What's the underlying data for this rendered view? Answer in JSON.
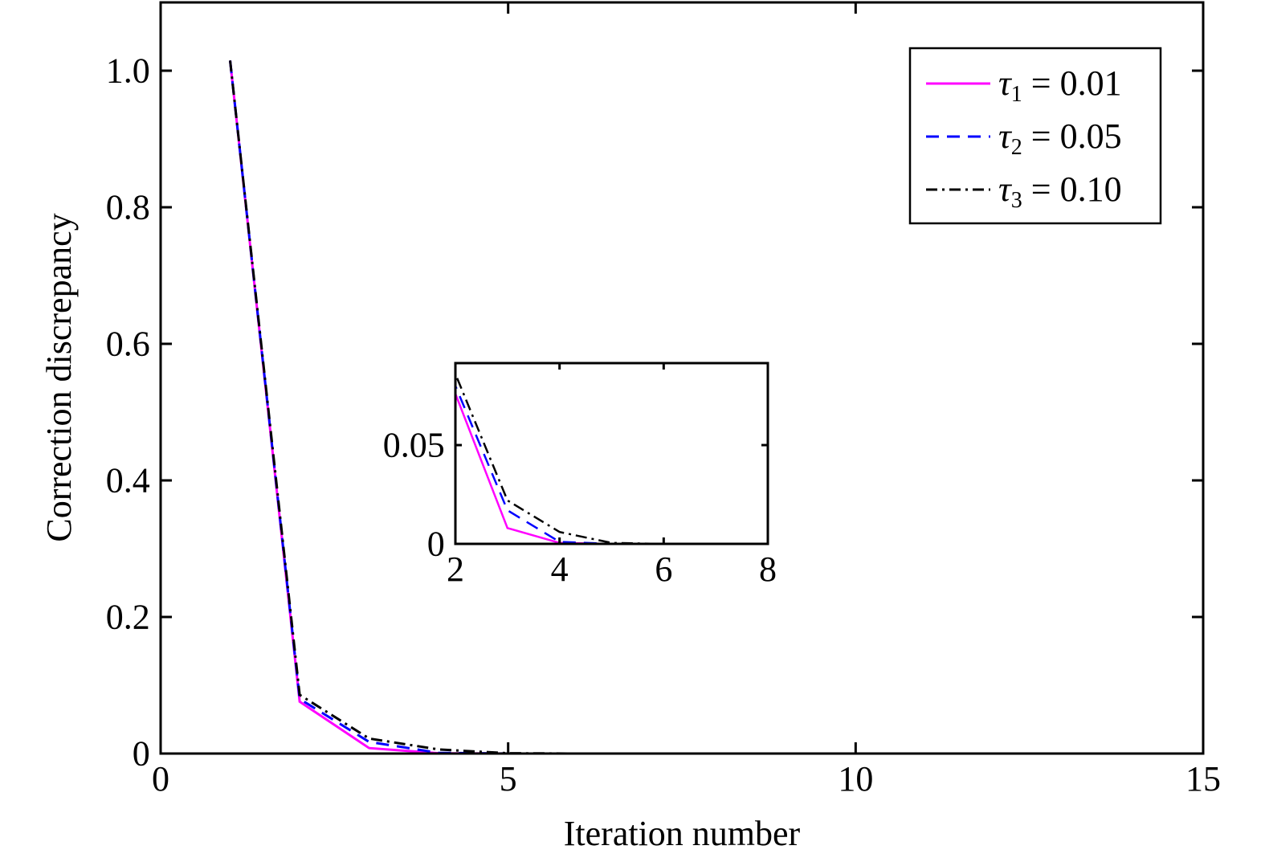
{
  "chart_data": [
    {
      "type": "line",
      "xlabel": "Iteration number",
      "ylabel": "Correction discrepancy",
      "xlim": [
        0,
        15
      ],
      "ylim": [
        0,
        1.1
      ],
      "xticks": [
        0,
        5,
        10,
        15
      ],
      "xtick_labels": [
        "0",
        "5",
        "10",
        "15"
      ],
      "yticks": [
        0,
        0.2,
        0.4,
        0.6,
        0.8,
        1.0
      ],
      "ytick_labels": [
        "0",
        "0.2",
        "0.4",
        "0.6",
        "0.8",
        "1.0"
      ],
      "grid": false,
      "legend_position": "top-right",
      "x": [
        1,
        2,
        3,
        4,
        5,
        6,
        7,
        8,
        9,
        10,
        11,
        12,
        13,
        14,
        15
      ],
      "series": [
        {
          "name": "τ1 = 0.01",
          "label_symbol": "τ",
          "label_sub": "1",
          "label_value": " = 0.01",
          "color": "#ff00ff",
          "style": "solid",
          "values": [
            1.015,
            0.076,
            0.008,
            0.0005,
            0,
            0,
            0,
            0,
            0,
            0,
            0,
            0,
            0,
            0,
            0
          ]
        },
        {
          "name": "τ2 = 0.05",
          "label_symbol": "τ",
          "label_sub": "2",
          "label_value": " = 0.05",
          "color": "#0000ff",
          "style": "dashed",
          "values": [
            1.015,
            0.08,
            0.017,
            0.001,
            0,
            0,
            0,
            0,
            0,
            0,
            0,
            0,
            0,
            0,
            0
          ]
        },
        {
          "name": "τ3 = 0.10",
          "label_symbol": "τ",
          "label_sub": "3",
          "label_value": " = 0.10",
          "color": "#000000",
          "style": "dashdot",
          "values": [
            1.015,
            0.086,
            0.022,
            0.006,
            0.0005,
            0,
            0,
            0,
            0,
            0,
            0,
            0,
            0,
            0,
            0
          ]
        }
      ]
    },
    {
      "type": "line",
      "role": "inset",
      "xlim": [
        2,
        8
      ],
      "ylim": [
        0,
        0.0915
      ],
      "xticks": [
        2,
        4,
        6,
        8
      ],
      "xtick_labels": [
        "2",
        "4",
        "6",
        "8"
      ],
      "yticks": [
        0,
        0.05
      ],
      "ytick_labels": [
        "0",
        "0.05"
      ],
      "grid": false
    }
  ]
}
